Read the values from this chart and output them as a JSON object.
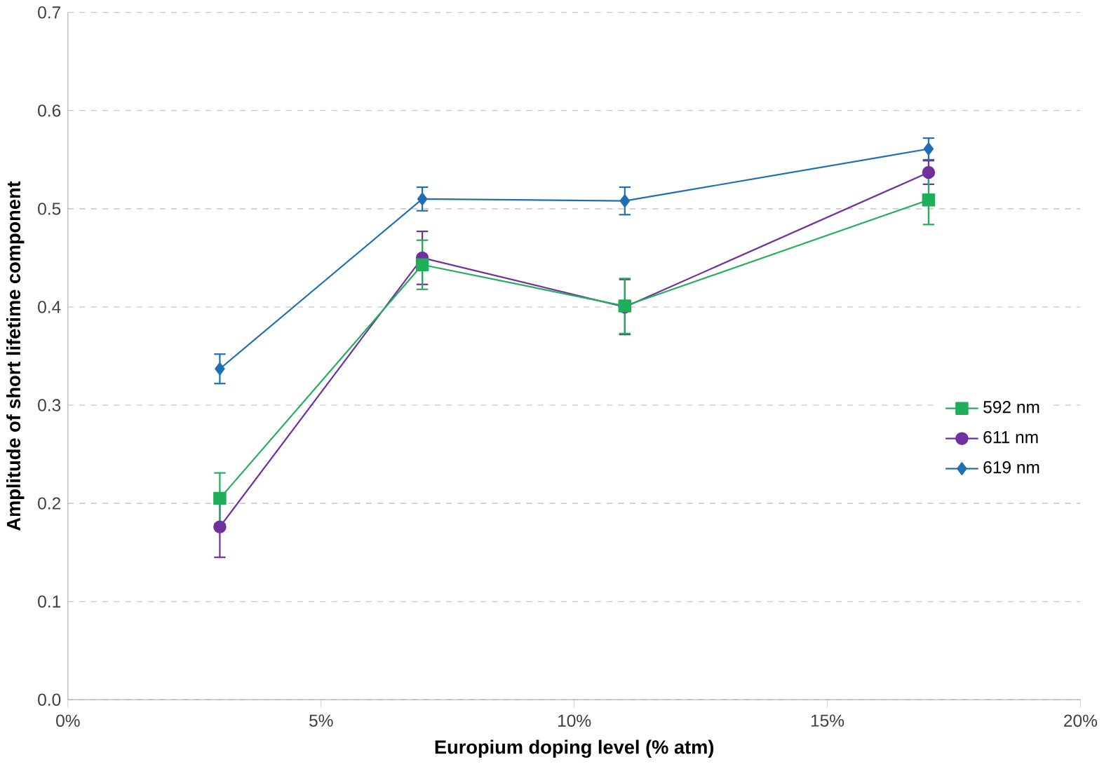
{
  "chart_data": {
    "type": "line",
    "xlabel": "Europium doping level (% atm)",
    "ylabel": "Amplitude of short lifetime component",
    "x": [
      3,
      7,
      11,
      17
    ],
    "series": [
      {
        "name": "592 nm",
        "color": "#1fae5a",
        "marker": "square",
        "values": [
          0.205,
          0.443,
          0.401,
          0.509
        ],
        "errors": [
          0.026,
          0.025,
          0.028,
          0.025
        ]
      },
      {
        "name": "611 nm",
        "color": "#7030a0",
        "marker": "circle",
        "values": [
          0.176,
          0.45,
          0.4,
          0.537
        ],
        "errors": [
          0.031,
          0.027,
          0.028,
          0.012
        ]
      },
      {
        "name": "619 nm",
        "color": "#1f6fb5",
        "marker": "diamond",
        "values": [
          0.337,
          0.51,
          0.508,
          0.561
        ],
        "errors": [
          0.015,
          0.012,
          0.014,
          0.011
        ]
      }
    ],
    "xlim": [
      0,
      20
    ],
    "xticks": [
      {
        "value": 0,
        "label": "0%"
      },
      {
        "value": 5,
        "label": "5%"
      },
      {
        "value": 10,
        "label": "10%"
      },
      {
        "value": 15,
        "label": "15%"
      },
      {
        "value": 20,
        "label": "20%"
      }
    ],
    "ylim": [
      0,
      0.7
    ],
    "yticks": [
      {
        "value": 0,
        "label": "0.0"
      },
      {
        "value": 0.1,
        "label": "0.1"
      },
      {
        "value": 0.2,
        "label": "0.2"
      },
      {
        "value": 0.3,
        "label": "0.3"
      },
      {
        "value": 0.4,
        "label": "0.4"
      },
      {
        "value": 0.5,
        "label": "0.5"
      },
      {
        "value": 0.6,
        "label": "0.6"
      },
      {
        "value": 0.7,
        "label": "0.7"
      }
    ],
    "grid": "y",
    "legend": "right",
    "line_style": "solid"
  }
}
